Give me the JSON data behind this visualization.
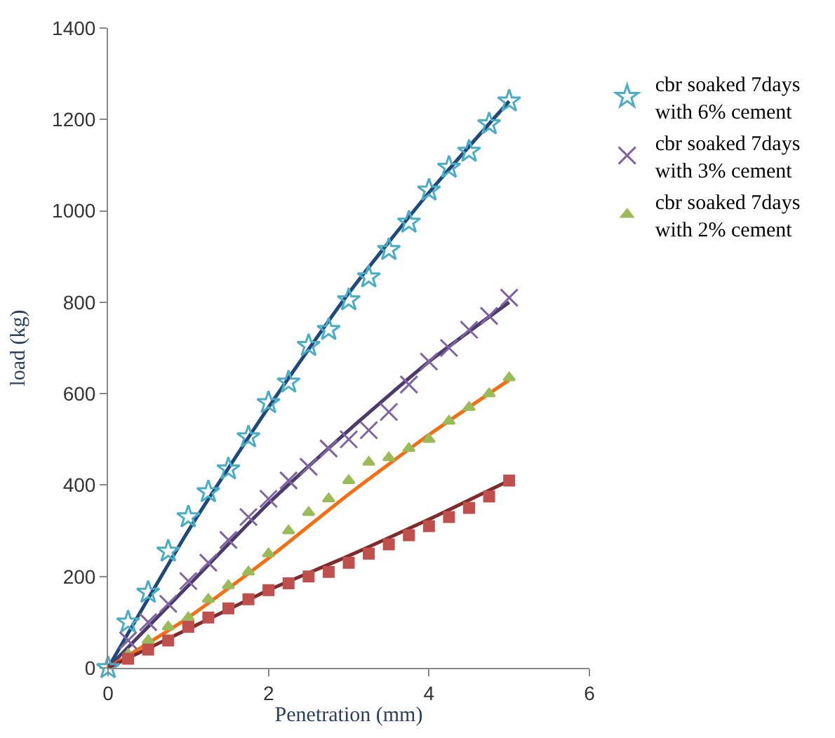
{
  "chart_data": {
    "type": "scatter",
    "xlabel": "Penetration (mm)",
    "ylabel": "load (kg)",
    "x": [
      0,
      0.25,
      0.5,
      0.75,
      1,
      1.25,
      1.5,
      1.75,
      2,
      2.25,
      2.5,
      2.75,
      3,
      3.25,
      3.5,
      3.75,
      4,
      4.25,
      4.5,
      4.75,
      5
    ],
    "xlim": [
      0,
      6
    ],
    "xticks": [
      0,
      2,
      4,
      6
    ],
    "ylim": [
      0,
      1400
    ],
    "yticks": [
      0,
      200,
      400,
      600,
      800,
      1000,
      1200,
      1400
    ],
    "grid": false,
    "legend": "right",
    "series": [
      {
        "name": "cbr soaked 7days with 6% cement",
        "color": "#4bacc6",
        "marker": "star",
        "values": [
          0,
          100,
          165,
          255,
          330,
          385,
          435,
          505,
          580,
          625,
          705,
          740,
          805,
          855,
          915,
          975,
          1045,
          1095,
          1130,
          1190,
          1240
        ]
      },
      {
        "name": "cbr soaked 7days with 3% cement",
        "color": "#8064a2",
        "marker": "cross",
        "values": [
          null,
          60,
          100,
          140,
          190,
          230,
          280,
          330,
          370,
          410,
          440,
          480,
          500,
          520,
          560,
          620,
          670,
          700,
          740,
          770,
          810
        ]
      },
      {
        "name": "cbr soaked 7days with 2% cement",
        "color": "#9bbb59",
        "marker": "triangle",
        "values": [
          null,
          30,
          60,
          90,
          110,
          150,
          180,
          210,
          250,
          300,
          340,
          370,
          410,
          450,
          460,
          480,
          500,
          540,
          570,
          600,
          635
        ]
      },
      {
        "color": "#c0504d",
        "marker": "square",
        "values": [
          null,
          20,
          40,
          60,
          90,
          110,
          130,
          150,
          170,
          185,
          200,
          210,
          230,
          250,
          270,
          290,
          310,
          330,
          350,
          375,
          410
        ]
      },
      {
        "type": "line",
        "color": "#1f497d",
        "marker": "none",
        "x": [
          0,
          1,
          2,
          3,
          4,
          5
        ],
        "values": [
          0,
          300,
          570,
          820,
          1040,
          1240
        ]
      },
      {
        "type": "line",
        "color": "#4b3a6b",
        "marker": "none",
        "x": [
          0,
          1,
          2,
          3,
          4,
          5
        ],
        "values": [
          0,
          180,
          360,
          520,
          670,
          800
        ]
      },
      {
        "type": "line",
        "color": "#f26f14",
        "marker": "none",
        "x": [
          0,
          1,
          2,
          3,
          4,
          5
        ],
        "values": [
          0,
          110,
          240,
          380,
          510,
          630
        ]
      },
      {
        "type": "line",
        "color": "#7f2b2a",
        "marker": "none",
        "x": [
          0,
          1,
          2,
          3,
          4,
          5
        ],
        "values": [
          0,
          85,
          170,
          245,
          325,
          410
        ]
      }
    ]
  }
}
